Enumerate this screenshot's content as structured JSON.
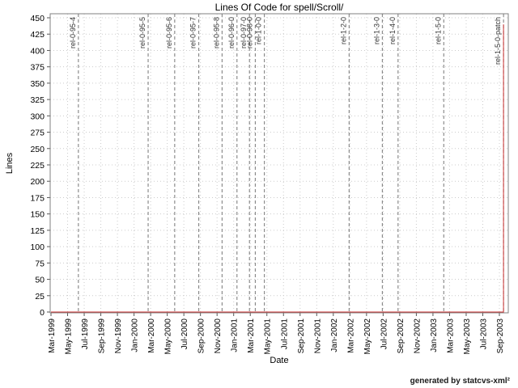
{
  "page": {
    "title": "Lines Of Code for spell/Scroll/",
    "footer": "generated by statcvs-xml²"
  },
  "chart_data": {
    "type": "line",
    "title": "Lines Of Code for spell/Scroll/",
    "xlabel": "Date",
    "ylabel": "Lines",
    "ylim": [
      0,
      450
    ],
    "y_ticks": [
      0,
      25,
      50,
      75,
      100,
      125,
      150,
      175,
      200,
      225,
      250,
      275,
      300,
      325,
      350,
      375,
      400,
      425,
      450
    ],
    "x_tick_labels": [
      "Mar-1999",
      "May-1999",
      "Jul-1999",
      "Sep-1999",
      "Nov-1999",
      "Jan-2000",
      "Mar-2000",
      "May-2000",
      "Jul-2000",
      "Sep-2000",
      "Nov-2000",
      "Jan-2001",
      "Mar-2001",
      "May-2001",
      "Jul-2001",
      "Sep-2001",
      "Nov-2001",
      "Jan-2002",
      "Mar-2002",
      "May-2002",
      "Jul-2002",
      "Sep-2002",
      "Nov-2002",
      "Jan-2003",
      "Mar-2003",
      "May-2003",
      "Jul-2003",
      "Sep-2003"
    ],
    "x_tick_interval_months": 2,
    "grid": true,
    "legend": "none",
    "series": [
      {
        "name": "Lines of Code",
        "color": "#cc3333",
        "points": [
          {
            "months_after_start": 0,
            "value": 0
          },
          {
            "months_after_start": 54.5,
            "value": 0
          },
          {
            "months_after_start": 54.5,
            "value": 440
          }
        ]
      }
    ],
    "releases": [
      {
        "label": "rel-0-95-4",
        "months_after_start": 3.3
      },
      {
        "label": "rel-0-95-5",
        "months_after_start": 11.7
      },
      {
        "label": "rel-0-95-6",
        "months_after_start": 14.9
      },
      {
        "label": "rel-0-95-7",
        "months_after_start": 17.8
      },
      {
        "label": "rel-0-95-8",
        "months_after_start": 20.6
      },
      {
        "label": "rel-0-96-0",
        "months_after_start": 22.4
      },
      {
        "label": "rel-0-97-0",
        "months_after_start": 23.9
      },
      {
        "label": "rel-0-98-0",
        "months_after_start": 24.6
      },
      {
        "label": "rel-1-0-0",
        "months_after_start": 25.7
      },
      {
        "label": "rel-1-2-0",
        "months_after_start": 35.9
      },
      {
        "label": "rel-1-3-0",
        "months_after_start": 39.9
      },
      {
        "label": "rel-1-4-0",
        "months_after_start": 41.8
      },
      {
        "label": "rel-1-5-0",
        "months_after_start": 47.3
      },
      {
        "label": "rel-1-5-0-patch",
        "months_after_start": 54.5
      }
    ],
    "colors": {
      "series": "#cc3333",
      "grid": "#cccccc",
      "release_line": "#777777",
      "release_text": "#333333",
      "border": "#808080",
      "tick": "#555555",
      "text": "#000000"
    }
  }
}
